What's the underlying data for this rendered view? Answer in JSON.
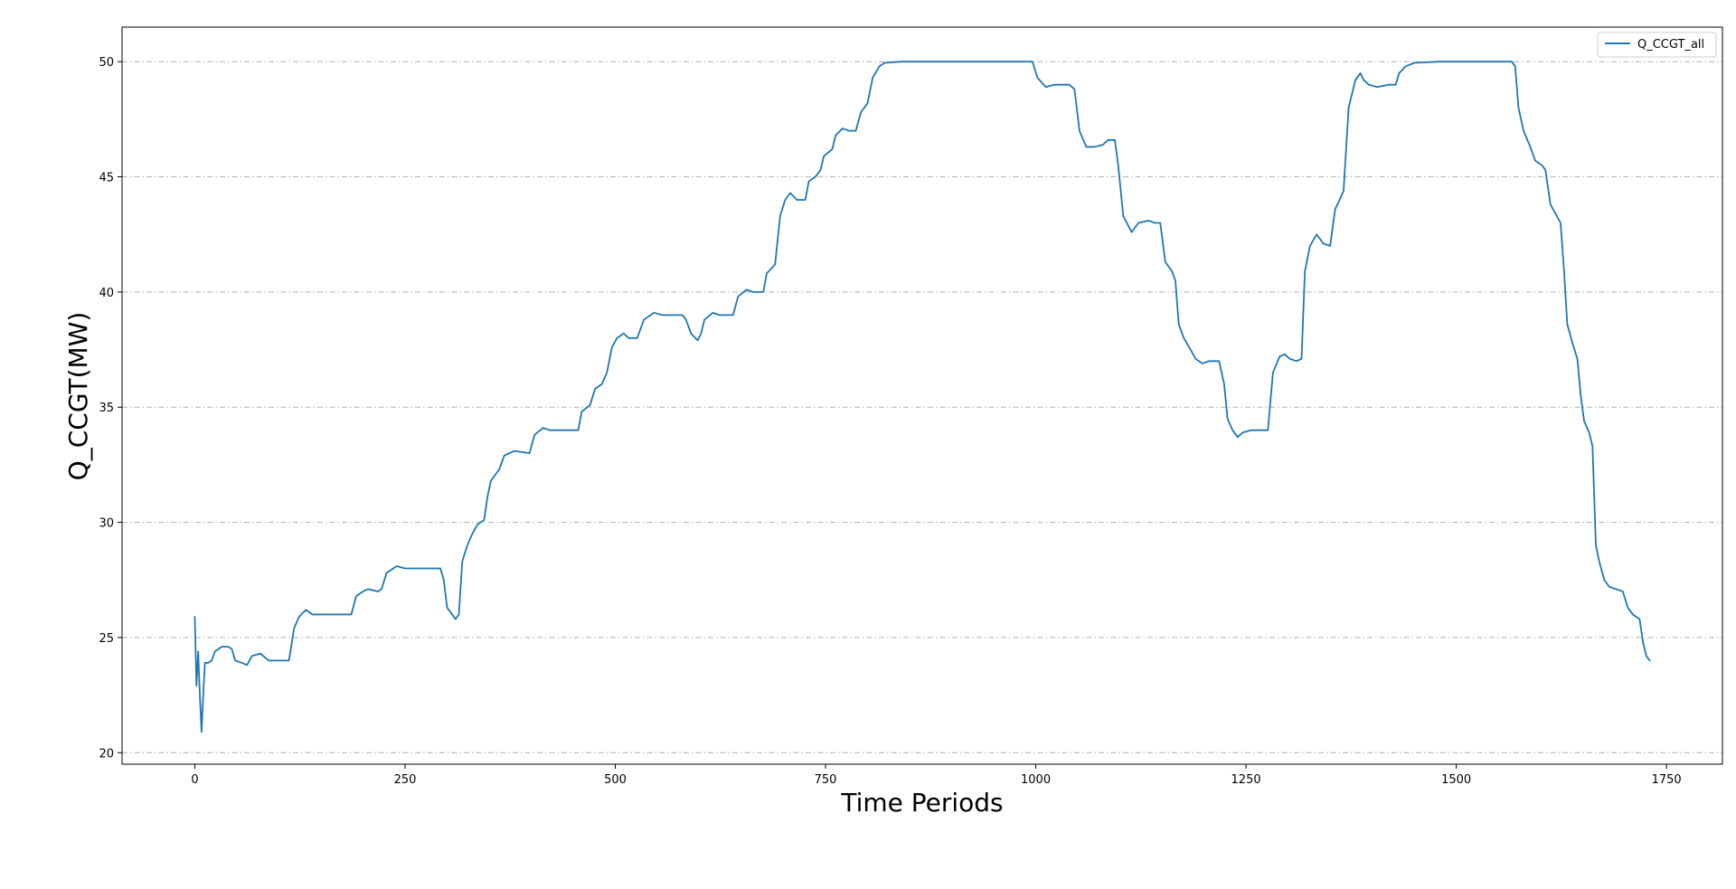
{
  "chart_data": {
    "type": "line",
    "title": "",
    "xlabel": "Time Periods",
    "ylabel": "Q_CCGT(MW)",
    "xlim": [
      -86.5,
      1816.5
    ],
    "ylim": [
      19.5,
      51.5
    ],
    "xticks": [
      0,
      250,
      500,
      750,
      1000,
      1250,
      1500,
      1750
    ],
    "yticks": [
      20,
      25,
      30,
      35,
      40,
      45,
      50
    ],
    "grid": "y-dashdot",
    "legend_position": "top-right",
    "colors": {
      "line": "#1f77b4",
      "grid": "#b0b0b0",
      "axis": "#000000"
    },
    "series": [
      {
        "name": "Q_CCGT_all",
        "points": [
          [
            0,
            25.9
          ],
          [
            2,
            22.9
          ],
          [
            4,
            24.4
          ],
          [
            6,
            22.5
          ],
          [
            8,
            20.9
          ],
          [
            10,
            22.5
          ],
          [
            12,
            23.9
          ],
          [
            16,
            23.9
          ],
          [
            20,
            24.0
          ],
          [
            24,
            24.4
          ],
          [
            32,
            24.6
          ],
          [
            40,
            24.6
          ],
          [
            44,
            24.5
          ],
          [
            48,
            24.0
          ],
          [
            56,
            23.9
          ],
          [
            62,
            23.8
          ],
          [
            68,
            24.2
          ],
          [
            78,
            24.3
          ],
          [
            88,
            24.0
          ],
          [
            100,
            24.0
          ],
          [
            112,
            24.0
          ],
          [
            118,
            25.4
          ],
          [
            124,
            25.9
          ],
          [
            132,
            26.2
          ],
          [
            140,
            26.0
          ],
          [
            150,
            26.0
          ],
          [
            160,
            26.0
          ],
          [
            170,
            26.0
          ],
          [
            186,
            26.0
          ],
          [
            192,
            26.8
          ],
          [
            200,
            27.0
          ],
          [
            206,
            27.1
          ],
          [
            218,
            27.0
          ],
          [
            222,
            27.1
          ],
          [
            228,
            27.8
          ],
          [
            240,
            28.1
          ],
          [
            250,
            28.0
          ],
          [
            270,
            28.0
          ],
          [
            292,
            28.0
          ],
          [
            296,
            27.5
          ],
          [
            300,
            26.3
          ],
          [
            306,
            26.0
          ],
          [
            310,
            25.8
          ],
          [
            314,
            26.0
          ],
          [
            318,
            28.3
          ],
          [
            324,
            29.0
          ],
          [
            330,
            29.5
          ],
          [
            336,
            29.9
          ],
          [
            344,
            30.1
          ],
          [
            348,
            31.1
          ],
          [
            352,
            31.8
          ],
          [
            362,
            32.3
          ],
          [
            368,
            32.9
          ],
          [
            380,
            33.1
          ],
          [
            398,
            33.0
          ],
          [
            404,
            33.8
          ],
          [
            414,
            34.1
          ],
          [
            422,
            34.0
          ],
          [
            440,
            34.0
          ],
          [
            456,
            34.0
          ],
          [
            460,
            34.8
          ],
          [
            470,
            35.1
          ],
          [
            476,
            35.8
          ],
          [
            484,
            36.0
          ],
          [
            490,
            36.5
          ],
          [
            496,
            37.6
          ],
          [
            502,
            38.0
          ],
          [
            510,
            38.2
          ],
          [
            516,
            38.0
          ],
          [
            526,
            38.0
          ],
          [
            534,
            38.8
          ],
          [
            546,
            39.1
          ],
          [
            556,
            39.0
          ],
          [
            580,
            39.0
          ],
          [
            584,
            38.8
          ],
          [
            590,
            38.2
          ],
          [
            598,
            37.9
          ],
          [
            602,
            38.2
          ],
          [
            606,
            38.8
          ],
          [
            616,
            39.1
          ],
          [
            624,
            39.0
          ],
          [
            640,
            39.0
          ],
          [
            646,
            39.8
          ],
          [
            656,
            40.1
          ],
          [
            664,
            40.0
          ],
          [
            676,
            40.0
          ],
          [
            680,
            40.8
          ],
          [
            690,
            41.2
          ],
          [
            696,
            43.3
          ],
          [
            702,
            44.0
          ],
          [
            708,
            44.3
          ],
          [
            716,
            44.0
          ],
          [
            726,
            44.0
          ],
          [
            730,
            44.8
          ],
          [
            738,
            45.0
          ],
          [
            744,
            45.3
          ],
          [
            748,
            45.9
          ],
          [
            758,
            46.2
          ],
          [
            762,
            46.8
          ],
          [
            770,
            47.1
          ],
          [
            778,
            47.0
          ],
          [
            786,
            47.0
          ],
          [
            792,
            47.8
          ],
          [
            800,
            48.2
          ],
          [
            806,
            49.3
          ],
          [
            814,
            49.8
          ],
          [
            820,
            49.95
          ],
          [
            840,
            50.0
          ],
          [
            870,
            50.0
          ],
          [
            900,
            50.0
          ],
          [
            940,
            50.0
          ],
          [
            970,
            50.0
          ],
          [
            996,
            50.0
          ],
          [
            1002,
            49.3
          ],
          [
            1012,
            48.9
          ],
          [
            1022,
            49.0
          ],
          [
            1040,
            49.0
          ],
          [
            1046,
            48.8
          ],
          [
            1052,
            47.0
          ],
          [
            1060,
            46.3
          ],
          [
            1070,
            46.3
          ],
          [
            1080,
            46.4
          ],
          [
            1086,
            46.6
          ],
          [
            1094,
            46.6
          ],
          [
            1098,
            45.5
          ],
          [
            1104,
            43.3
          ],
          [
            1114,
            42.6
          ],
          [
            1122,
            43.0
          ],
          [
            1134,
            43.1
          ],
          [
            1142,
            43.0
          ],
          [
            1148,
            43.0
          ],
          [
            1154,
            41.3
          ],
          [
            1162,
            40.9
          ],
          [
            1166,
            40.5
          ],
          [
            1170,
            38.6
          ],
          [
            1176,
            38.0
          ],
          [
            1184,
            37.5
          ],
          [
            1190,
            37.1
          ],
          [
            1198,
            36.9
          ],
          [
            1206,
            37.0
          ],
          [
            1218,
            37.0
          ],
          [
            1224,
            36.0
          ],
          [
            1228,
            34.5
          ],
          [
            1234,
            34.0
          ],
          [
            1240,
            33.7
          ],
          [
            1246,
            33.9
          ],
          [
            1256,
            34.0
          ],
          [
            1266,
            34.0
          ],
          [
            1276,
            34.0
          ],
          [
            1282,
            36.5
          ],
          [
            1290,
            37.2
          ],
          [
            1296,
            37.3
          ],
          [
            1302,
            37.1
          ],
          [
            1310,
            37.0
          ],
          [
            1316,
            37.1
          ],
          [
            1320,
            40.9
          ],
          [
            1326,
            42.0
          ],
          [
            1334,
            42.5
          ],
          [
            1342,
            42.1
          ],
          [
            1350,
            42.0
          ],
          [
            1356,
            43.6
          ],
          [
            1360,
            43.9
          ],
          [
            1366,
            44.4
          ],
          [
            1372,
            48.0
          ],
          [
            1380,
            49.2
          ],
          [
            1386,
            49.5
          ],
          [
            1390,
            49.2
          ],
          [
            1396,
            49.0
          ],
          [
            1406,
            48.9
          ],
          [
            1420,
            49.0
          ],
          [
            1428,
            49.0
          ],
          [
            1432,
            49.5
          ],
          [
            1440,
            49.8
          ],
          [
            1450,
            49.95
          ],
          [
            1480,
            50.0
          ],
          [
            1520,
            50.0
          ],
          [
            1560,
            50.0
          ],
          [
            1566,
            50.0
          ],
          [
            1570,
            49.8
          ],
          [
            1574,
            48.0
          ],
          [
            1580,
            47.0
          ],
          [
            1588,
            46.3
          ],
          [
            1594,
            45.7
          ],
          [
            1602,
            45.5
          ],
          [
            1606,
            45.3
          ],
          [
            1612,
            43.8
          ],
          [
            1618,
            43.4
          ],
          [
            1624,
            43.0
          ],
          [
            1628,
            41.0
          ],
          [
            1632,
            38.6
          ],
          [
            1638,
            37.8
          ],
          [
            1644,
            37.1
          ],
          [
            1648,
            35.5
          ],
          [
            1652,
            34.4
          ],
          [
            1658,
            33.9
          ],
          [
            1662,
            33.3
          ],
          [
            1666,
            29.0
          ],
          [
            1670,
            28.3
          ],
          [
            1676,
            27.5
          ],
          [
            1682,
            27.2
          ],
          [
            1690,
            27.1
          ],
          [
            1698,
            27.0
          ],
          [
            1704,
            26.3
          ],
          [
            1710,
            26.0
          ],
          [
            1718,
            25.8
          ],
          [
            1722,
            24.8
          ],
          [
            1726,
            24.2
          ],
          [
            1730,
            24.0
          ]
        ]
      }
    ]
  }
}
